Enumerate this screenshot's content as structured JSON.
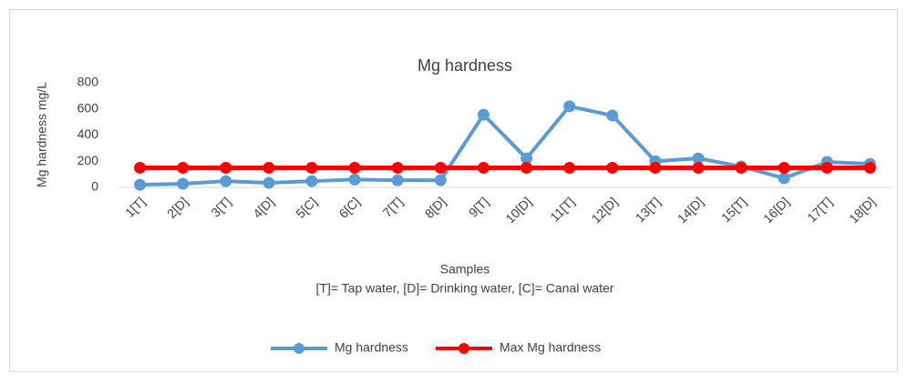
{
  "chart_data": {
    "type": "line",
    "title": "Mg hardness",
    "y_label": "Mg hardness mg/L",
    "x_label": "Samples",
    "note": "[T]= Tap water, [D]= Drinking water, [C]= Canal water",
    "categories": [
      "1[T]",
      "2[D]",
      "3[T]",
      "4[D]",
      "5[C]",
      "6[C]",
      "7[T]",
      "8[D]",
      "9[T]",
      "10[D]",
      "11[T]",
      "12[D]",
      "13[T]",
      "14[D]",
      "15[T]",
      "16[D]",
      "17[T]",
      "18[D]"
    ],
    "series": [
      {
        "name": "Mg hardness",
        "color": "#5b9bd5",
        "values": [
          20,
          28,
          48,
          35,
          48,
          60,
          55,
          55,
          556,
          222,
          620,
          550,
          200,
          222,
          160,
          70,
          195,
          180
        ]
      },
      {
        "name": "Max Mg hardness",
        "color": "#ff0000",
        "values": [
          150,
          150,
          150,
          150,
          150,
          150,
          150,
          150,
          150,
          150,
          150,
          150,
          150,
          150,
          150,
          150,
          150,
          150
        ]
      }
    ],
    "ylim": [
      0,
      800
    ],
    "yticks": [
      0,
      200,
      400,
      600,
      800
    ],
    "grid": false,
    "legend": "bottom"
  }
}
